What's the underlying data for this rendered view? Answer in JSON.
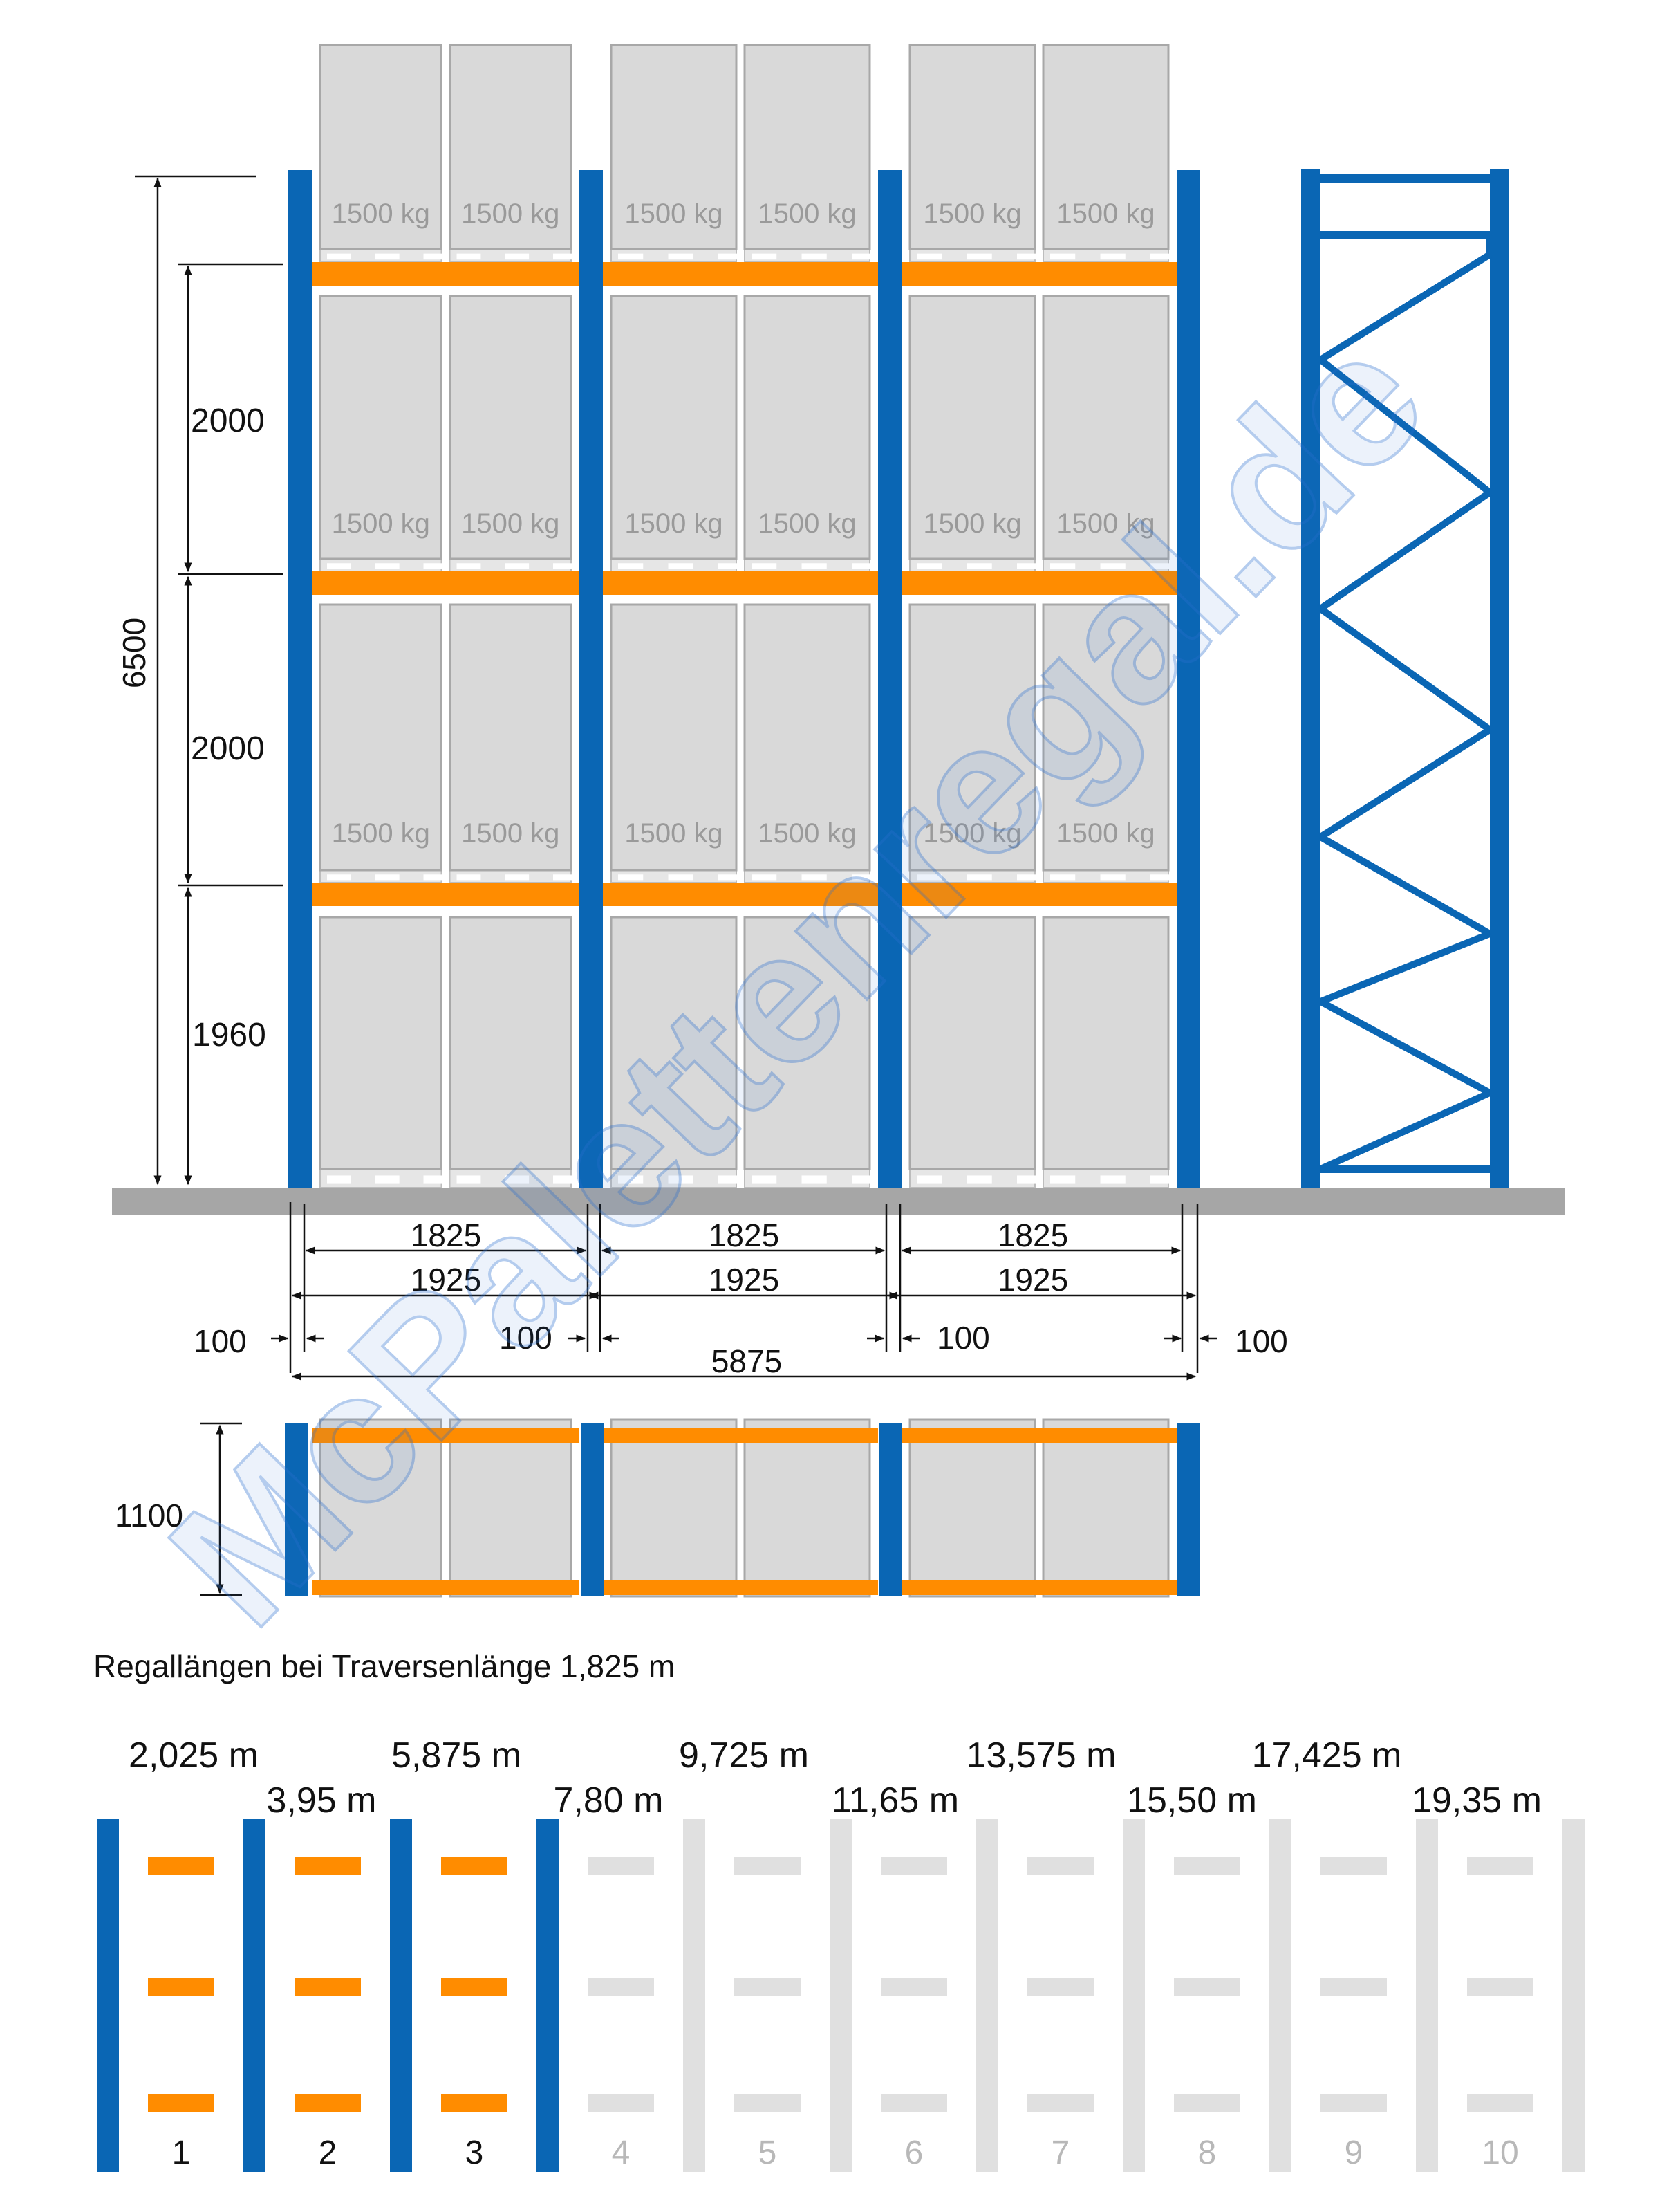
{
  "colors": {
    "upright": "#0a66b4",
    "beam": "#ff8c00",
    "pallet_box": "#d9d9d9",
    "pallet_box_stroke": "#a8a8a8",
    "floor": "#a6a6a6",
    "inactive": "#e0e0e0",
    "dim_line": "#111111",
    "load_text": "#9a9a9a",
    "watermark": "#2a6fcf"
  },
  "watermark": "McPalettenregal.de",
  "load_label": "1500 kg",
  "dimensions": {
    "total_height": "6500",
    "level_1": "1960",
    "level_2": "2000",
    "level_3": "2000",
    "beam_length": "1825",
    "bay_length": "1925",
    "upright_width": "100",
    "total_length": "5875",
    "depth": "1100"
  },
  "caption": "Regallängen bei Traversenlänge 1,825 m",
  "lengths_top": [
    "2,025 m",
    "5,875 m",
    "9,725 m",
    "13,575 m",
    "17,425 m"
  ],
  "lengths_bottom": [
    "3,95 m",
    "7,80 m",
    "11,65 m",
    "15,50 m",
    "19,35 m"
  ],
  "bay_numbers": [
    "1",
    "2",
    "3",
    "4",
    "5",
    "6",
    "7",
    "8",
    "9",
    "10"
  ],
  "active_bays": 3
}
